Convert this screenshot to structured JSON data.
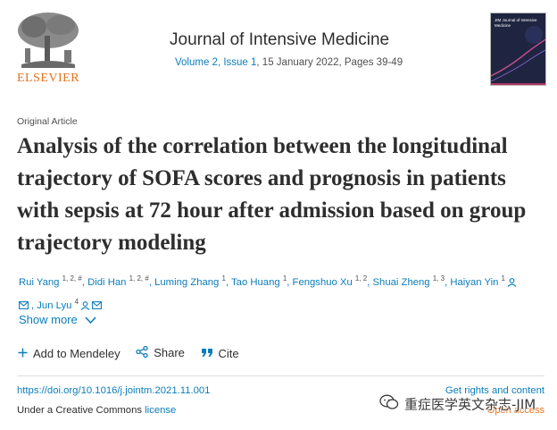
{
  "publisher": {
    "wordmark": "ELSEVIER"
  },
  "journal": {
    "title": "Journal of Intensive Medicine",
    "volume_issue": "Volume 2, Issue 1",
    "date_pages": ", 15 January 2022, Pages 39-49",
    "cover_title": "JIM Journal of Intensive Medicine"
  },
  "article": {
    "type": "Original Article",
    "title": "Analysis of the correlation between the longitudinal trajectory of SOFA scores and prognosis in patients with sepsis at 72 hour after admission based on group trajectory modeling"
  },
  "authors": [
    {
      "name": "Rui Yang",
      "sup": "1, 2, #"
    },
    {
      "name": "Didi Han",
      "sup": "1, 2, #"
    },
    {
      "name": "Luming Zhang",
      "sup": "1"
    },
    {
      "name": "Tao Huang",
      "sup": "1"
    },
    {
      "name": "Fengshuo Xu",
      "sup": "1, 2"
    },
    {
      "name": "Shuai Zheng",
      "sup": "1, 3"
    },
    {
      "name": "Haiyan Yin",
      "sup": "1"
    },
    {
      "name": "Jun Lyu",
      "sup": "4"
    }
  ],
  "show_more": "Show more",
  "actions": {
    "mendeley": "Add to Mendeley",
    "share": "Share",
    "cite": "Cite"
  },
  "footer": {
    "doi": "https://doi.org/10.1016/j.jointm.2021.11.001",
    "rights": "Get rights and content",
    "license_prefix": "Under a Creative Commons ",
    "license_link": "license",
    "open_access": "Open access"
  },
  "watermark": {
    "text": "重症医学英文杂志-JIM"
  },
  "colors": {
    "link": "#0c7dbb",
    "brand": "#e9711c",
    "text": "#2e2e2e"
  }
}
